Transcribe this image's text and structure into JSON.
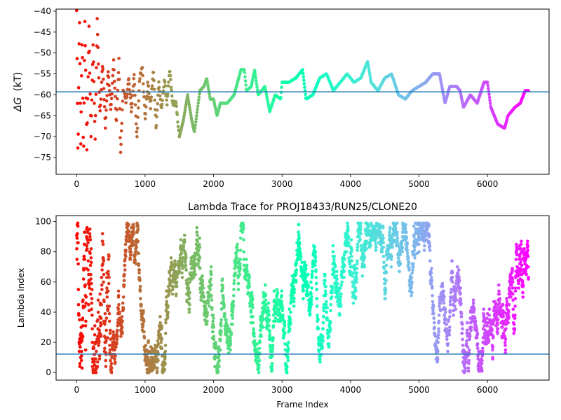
{
  "chart_data": [
    {
      "type": "scatter",
      "title": "",
      "xlabel": "",
      "ylabel_symbol": "ΔG",
      "ylabel_unit": "(kT)",
      "xlim": [
        -300,
        6900
      ],
      "ylim": [
        -79,
        -39.5
      ],
      "xticks": [
        0,
        1000,
        2000,
        3000,
        4000,
        5000,
        6000
      ],
      "yticks": [
        -75,
        -70,
        -65,
        -60,
        -55,
        -50,
        -45,
        -40
      ],
      "hline": -59.3,
      "hline_color": "#1f77b4",
      "colormap": "rainbow",
      "trace_keypoints": [
        [
          0,
          -40
        ],
        [
          20,
          -77
        ],
        [
          40,
          -40
        ],
        [
          60,
          -72
        ],
        [
          80,
          -45
        ],
        [
          100,
          -76
        ],
        [
          120,
          -42
        ],
        [
          150,
          -73
        ],
        [
          180,
          -44
        ],
        [
          210,
          -70
        ],
        [
          240,
          -48
        ],
        [
          270,
          -71
        ],
        [
          300,
          -42
        ],
        [
          340,
          -65
        ],
        [
          380,
          -52
        ],
        [
          420,
          -68
        ],
        [
          460,
          -54
        ],
        [
          500,
          -64
        ],
        [
          540,
          -52
        ],
        [
          580,
          -67
        ],
        [
          620,
          -51
        ],
        [
          640,
          -75
        ],
        [
          680,
          -58
        ],
        [
          720,
          -62
        ],
        [
          760,
          -56
        ],
        [
          800,
          -64
        ],
        [
          840,
          -55
        ],
        [
          880,
          -71
        ],
        [
          920,
          -56
        ],
        [
          960,
          -53
        ],
        [
          1000,
          -66
        ],
        [
          1040,
          -57
        ],
        [
          1080,
          -63
        ],
        [
          1120,
          -54
        ],
        [
          1160,
          -68
        ],
        [
          1200,
          -57
        ],
        [
          1240,
          -64
        ],
        [
          1280,
          -56
        ],
        [
          1320,
          -62
        ],
        [
          1360,
          -54
        ],
        [
          1400,
          -62
        ],
        [
          1450,
          -62
        ],
        [
          1500,
          -70
        ],
        [
          1560,
          -66
        ],
        [
          1620,
          -60
        ],
        [
          1680,
          -66
        ],
        [
          1720,
          -69
        ],
        [
          1760,
          -64
        ],
        [
          1800,
          -59
        ],
        [
          1860,
          -58
        ],
        [
          1900,
          -56
        ],
        [
          1950,
          -61
        ],
        [
          2000,
          -61
        ],
        [
          2050,
          -65
        ],
        [
          2100,
          -62
        ],
        [
          2200,
          -62
        ],
        [
          2300,
          -60
        ],
        [
          2400,
          -54
        ],
        [
          2450,
          -54
        ],
        [
          2480,
          -59
        ],
        [
          2550,
          -58
        ],
        [
          2600,
          -54
        ],
        [
          2650,
          -60
        ],
        [
          2750,
          -58
        ],
        [
          2820,
          -64
        ],
        [
          2900,
          -60
        ],
        [
          2980,
          -61
        ],
        [
          3000,
          -57
        ],
        [
          3100,
          -57
        ],
        [
          3200,
          -56
        ],
        [
          3300,
          -54
        ],
        [
          3350,
          -61
        ],
        [
          3450,
          -60
        ],
        [
          3550,
          -56
        ],
        [
          3650,
          -55
        ],
        [
          3750,
          -59
        ],
        [
          3850,
          -57
        ],
        [
          3950,
          -55
        ],
        [
          4050,
          -57
        ],
        [
          4150,
          -56
        ],
        [
          4250,
          -52
        ],
        [
          4300,
          -57
        ],
        [
          4400,
          -59
        ],
        [
          4500,
          -56
        ],
        [
          4600,
          -55
        ],
        [
          4700,
          -60
        ],
        [
          4800,
          -61
        ],
        [
          4900,
          -59
        ],
        [
          5000,
          -58
        ],
        [
          5100,
          -57
        ],
        [
          5200,
          -55
        ],
        [
          5300,
          -55
        ],
        [
          5380,
          -62
        ],
        [
          5450,
          -58
        ],
        [
          5550,
          -58
        ],
        [
          5600,
          -59
        ],
        [
          5650,
          -63
        ],
        [
          5750,
          -60
        ],
        [
          5850,
          -62
        ],
        [
          5950,
          -57
        ],
        [
          6000,
          -57
        ],
        [
          6050,
          -63
        ],
        [
          6150,
          -67
        ],
        [
          6250,
          -68
        ],
        [
          6300,
          -65
        ],
        [
          6400,
          -63
        ],
        [
          6480,
          -62
        ],
        [
          6550,
          -59
        ],
        [
          6600,
          -59
        ]
      ]
    },
    {
      "type": "scatter",
      "title": "Lambda Trace for PROJ18433/RUN25/CLONE20",
      "xlabel": "Frame Index",
      "ylabel": "Lambda Index",
      "xlim": [
        -300,
        6900
      ],
      "ylim": [
        -5,
        104
      ],
      "xticks": [
        0,
        1000,
        2000,
        3000,
        4000,
        5000,
        6000
      ],
      "yticks": [
        0,
        20,
        40,
        60,
        80,
        100
      ],
      "hline": 12.2,
      "hline_color": "#1f77b4",
      "colormap": "rainbow",
      "n_frames": 6600,
      "lambda_range": [
        0,
        99
      ]
    }
  ]
}
